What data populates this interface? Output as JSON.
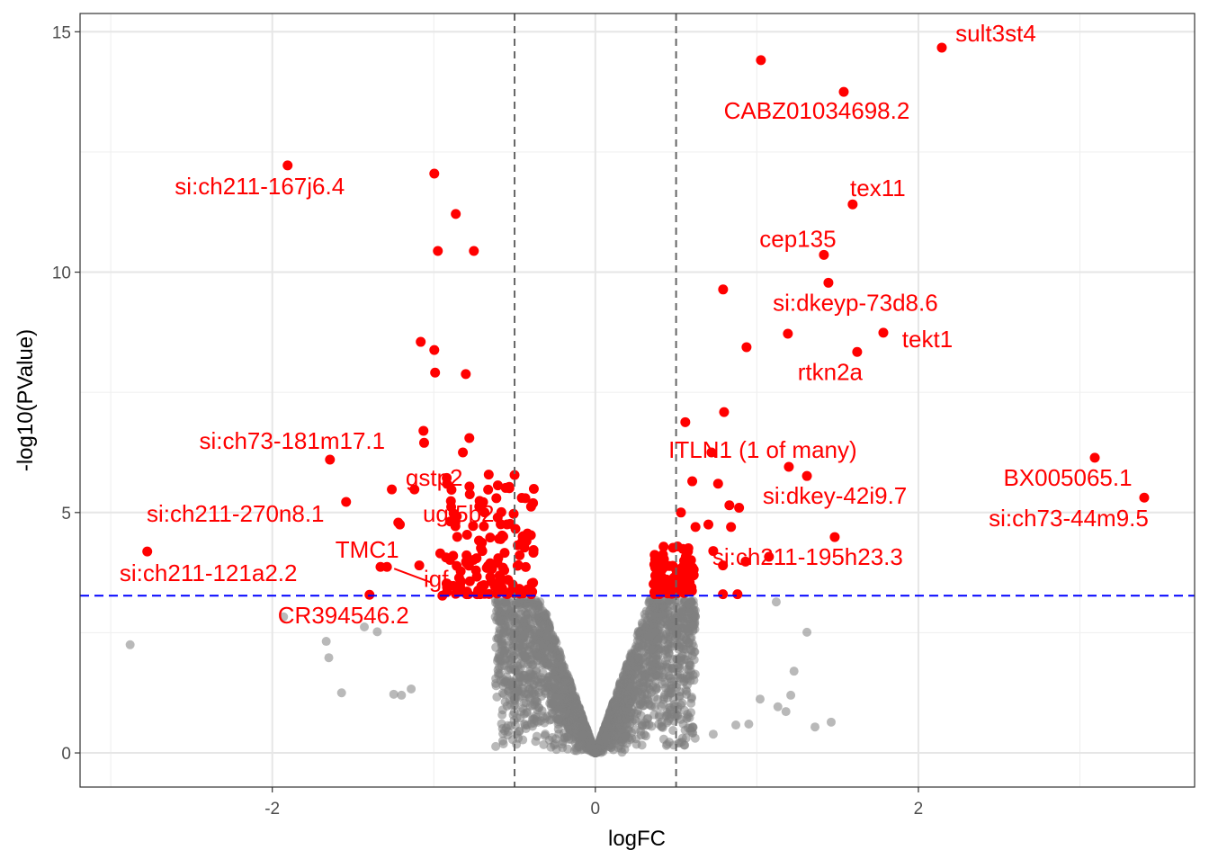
{
  "chart_data": {
    "type": "scatter",
    "title": "",
    "xlabel": "logFC",
    "ylabel": "-log10(PValue)",
    "xlim": [
      -3.19,
      3.71
    ],
    "ylim": [
      -0.71,
      15.38
    ],
    "x_ticks": [
      -2,
      0,
      2
    ],
    "x_tick_labels": [
      "-2",
      "0",
      "2"
    ],
    "y_ticks": [
      0,
      5,
      10,
      15
    ],
    "y_tick_labels": [
      "0",
      "5",
      "10",
      "15"
    ],
    "grid": true,
    "thresholds": {
      "logFC": [
        -0.5,
        0.5
      ],
      "neg_log10_p": 3.27
    },
    "colors": {
      "significant": "#ff0000",
      "not_significant": "#808080",
      "fc_line": "#666666",
      "p_line": "#0000ff",
      "label": "#ff0000"
    },
    "labeled_points": [
      {
        "label": "sult3st4",
        "x": 2.145,
        "y": 14.67
      },
      {
        "label": "CABZ01034698.2",
        "x": 1.538,
        "y": 13.75
      },
      {
        "label": "si:ch211-167j6.4",
        "x": -1.905,
        "y": 12.22
      },
      {
        "label": "tex11",
        "x": 1.593,
        "y": 11.41
      },
      {
        "label": "cep135",
        "x": 1.415,
        "y": 10.36
      },
      {
        "label": "si:dkeyp-73d8.6",
        "x": 1.443,
        "y": 9.78
      },
      {
        "label": "tekt1",
        "x": 1.783,
        "y": 8.74
      },
      {
        "label": "rtkn2a",
        "x": 1.621,
        "y": 8.34
      },
      {
        "label": "ITLN1 (1 of many)",
        "x": 0.719,
        "y": 6.25
      },
      {
        "label": "BX005065.1",
        "x": 3.092,
        "y": 6.14
      },
      {
        "label": "si:dkey-42i9.7",
        "x": 1.31,
        "y": 5.76
      },
      {
        "label": "si:ch73-44m9.5",
        "x": 3.398,
        "y": 5.31
      },
      {
        "label": "si:ch211-195h23.3",
        "x": 1.075,
        "y": 4.08
      },
      {
        "label": "si:ch73-181m17.1",
        "x": -1.643,
        "y": 6.1
      },
      {
        "label": "gstp2",
        "x": -1.12,
        "y": 5.48
      },
      {
        "label": "si:ch211-270n8.1",
        "x": -1.543,
        "y": 5.22
      },
      {
        "label": "ugt5b2",
        "x": -1.22,
        "y": 4.79
      },
      {
        "label": "TMC1",
        "x": -1.29,
        "y": 3.87
      },
      {
        "label": "igf",
        "x": -0.947,
        "y": 3.27
      },
      {
        "label": "si:ch211-121a2.2",
        "x": -2.774,
        "y": 4.19
      },
      {
        "label": "CR394546.2",
        "x": -1.398,
        "y": 3.29
      }
    ],
    "significant_points": [
      [
        1.025,
        14.41
      ],
      [
        -0.997,
        12.05
      ],
      [
        -0.864,
        11.21
      ],
      [
        -0.975,
        10.44
      ],
      [
        -0.752,
        10.44
      ],
      [
        0.791,
        9.64
      ],
      [
        0.936,
        8.44
      ],
      [
        1.192,
        8.72
      ],
      [
        -1.081,
        8.55
      ],
      [
        -0.997,
        8.38
      ],
      [
        -0.992,
        7.91
      ],
      [
        -0.802,
        7.88
      ],
      [
        0.797,
        7.09
      ],
      [
        0.557,
        6.88
      ],
      [
        1.198,
        5.95
      ],
      [
        1.482,
        4.49
      ],
      [
        -1.064,
        6.7
      ],
      [
        -0.78,
        6.55
      ],
      [
        -1.06,
        6.45
      ],
      [
        -0.82,
        6.25
      ],
      [
        -0.5,
        5.78
      ],
      [
        -1.26,
        5.48
      ],
      [
        -0.92,
        5.72
      ],
      [
        -0.66,
        5.79
      ],
      [
        0.6,
        5.65
      ],
      [
        0.76,
        5.6
      ],
      [
        0.83,
        5.15
      ],
      [
        0.89,
        5.1
      ],
      [
        0.53,
        5.0
      ],
      [
        0.7,
        4.75
      ],
      [
        0.62,
        4.7
      ],
      [
        0.84,
        4.7
      ],
      [
        -1.21,
        4.75
      ],
      [
        -1.33,
        3.87
      ],
      [
        -1.09,
        3.9
      ],
      [
        -0.96,
        4.15
      ],
      [
        -0.88,
        4.1
      ],
      [
        0.73,
        4.2
      ],
      [
        0.93,
        3.98
      ],
      [
        0.79,
        3.9
      ],
      [
        -0.57,
        4.5
      ],
      [
        -0.7,
        4.2
      ],
      [
        -0.45,
        4.5
      ],
      [
        0.88,
        3.3
      ],
      [
        0.79,
        3.3
      ],
      [
        -0.6,
        3.4
      ],
      [
        -0.42,
        3.4
      ],
      [
        0.58,
        3.45
      ],
      [
        0.45,
        3.38
      ],
      [
        -0.54,
        3.6
      ]
    ],
    "not_significant_outliers": [
      [
        -2.88,
        2.25
      ],
      [
        -1.666,
        2.32
      ],
      [
        -1.65,
        1.98
      ],
      [
        -1.571,
        1.25
      ],
      [
        -1.248,
        1.22
      ],
      [
        -1.2,
        1.2
      ],
      [
        -1.14,
        1.33
      ],
      [
        -1.93,
        2.83
      ],
      [
        -1.43,
        2.62
      ],
      [
        -1.35,
        2.52
      ],
      [
        1.12,
        3.14
      ],
      [
        1.31,
        2.51
      ],
      [
        1.23,
        1.7
      ],
      [
        1.46,
        0.64
      ],
      [
        1.36,
        0.54
      ],
      [
        1.21,
        1.2
      ],
      [
        1.18,
        0.86
      ],
      [
        1.13,
        0.96
      ],
      [
        1.02,
        1.12
      ],
      [
        0.95,
        0.6
      ],
      [
        0.87,
        0.58
      ],
      [
        0.6,
        0.42
      ],
      [
        0.73,
        0.39
      ]
    ]
  }
}
